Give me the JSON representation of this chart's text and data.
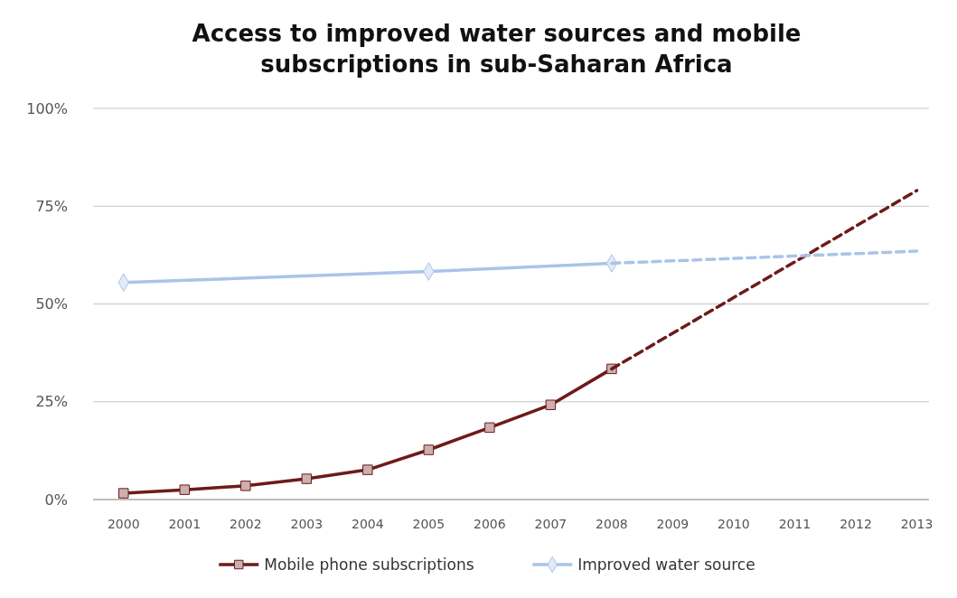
{
  "chart_data": {
    "type": "line",
    "title": "Access to improved water sources and mobile subscriptions in sub-Saharan Africa",
    "series": [
      {
        "name": "Mobile phone subscriptions",
        "color": "#6e1a1a",
        "marker": "square",
        "line_style": "solid",
        "x": [
          2000,
          2001,
          2002,
          2003,
          2004,
          2005,
          2006,
          2007,
          2008
        ],
        "values": [
          1.6,
          2.5,
          3.5,
          5.3,
          7.6,
          12.7,
          18.4,
          24.2,
          33.4
        ]
      },
      {
        "color": "#6e1a1a",
        "line_style": "dashed",
        "x": [
          2008,
          2013
        ],
        "values": [
          33.4,
          79
        ]
      },
      {
        "name": "Improved water source",
        "color": "#a9c4e8",
        "marker": "diamond",
        "line_style": "solid",
        "x": [
          2000,
          2005,
          2008
        ],
        "values": [
          55.5,
          58.3,
          60.4
        ]
      },
      {
        "color": "#a9c4e8",
        "line_style": "dashed",
        "x": [
          2008,
          2013
        ],
        "values": [
          60.4,
          63.5
        ]
      }
    ],
    "xlim": [
      1999.5,
      2013.2
    ],
    "xticks": [
      2000,
      2001,
      2002,
      2003,
      2004,
      2005,
      2006,
      2007,
      2008,
      2009,
      2010,
      2011,
      2012,
      2013
    ],
    "ylim": [
      0,
      100
    ],
    "yticks": [
      {
        "value": 0,
        "label": "0%"
      },
      {
        "value": 25,
        "label": "25%"
      },
      {
        "value": 50,
        "label": "50%"
      },
      {
        "value": 75,
        "label": "75%"
      },
      {
        "value": 100,
        "label": "100%"
      }
    ],
    "grid": "y",
    "legend": "bottom"
  }
}
